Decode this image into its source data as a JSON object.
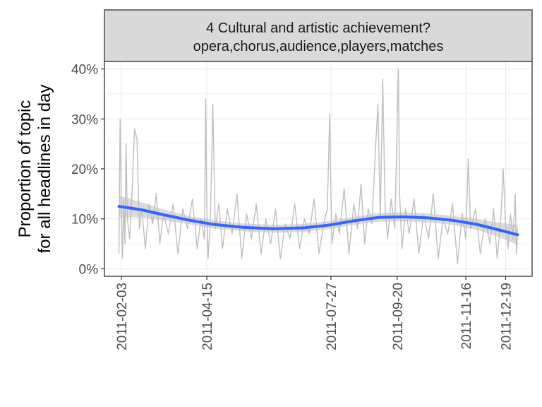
{
  "panel": {
    "strip_line1": "4 Cultural and artistic achievement?",
    "strip_line2": "opera,chorus,audience,players,matches"
  },
  "chart_data": {
    "type": "line",
    "title": "",
    "xlabel": "",
    "ylabel_line1": "Proportion of topic",
    "ylabel_line2": "for all headlines in day",
    "x_axis": "date",
    "xlim": [
      "2011-01-20",
      "2012-01-10"
    ],
    "ylim": [
      -0.015,
      0.415
    ],
    "y_ticks": [
      0,
      0.1,
      0.2,
      0.3,
      0.4
    ],
    "y_tick_labels": [
      "0%",
      "10%",
      "20%",
      "30%",
      "40%"
    ],
    "x_ticks": [
      "2011-02-03",
      "2011-04-15",
      "2011-07-27",
      "2011-09-20",
      "2011-11-16",
      "2011-12-19"
    ],
    "x_tick_labels": [
      "2011-02-03",
      "2011-04-15",
      "2011-07-27",
      "2011-09-20",
      "2011-11-16",
      "2011-12-19"
    ],
    "grid": true,
    "series": [
      {
        "kind": "raw",
        "color": "#bfbfbf",
        "points": [
          [
            "2011-02-01",
            0.03
          ],
          [
            "2011-02-02",
            0.3
          ],
          [
            "2011-02-03",
            0.12
          ],
          [
            "2011-02-04",
            0.02
          ],
          [
            "2011-02-05",
            0.14
          ],
          [
            "2011-02-06",
            0.05
          ],
          [
            "2011-02-07",
            0.25
          ],
          [
            "2011-02-08",
            0.1
          ],
          [
            "2011-02-10",
            0.06
          ],
          [
            "2011-02-12",
            0.16
          ],
          [
            "2011-02-14",
            0.28
          ],
          [
            "2011-02-16",
            0.26
          ],
          [
            "2011-02-18",
            0.08
          ],
          [
            "2011-02-20",
            0.12
          ],
          [
            "2011-02-23",
            0.04
          ],
          [
            "2011-02-26",
            0.13
          ],
          [
            "2011-03-01",
            0.09
          ],
          [
            "2011-03-04",
            0.15
          ],
          [
            "2011-03-07",
            0.05
          ],
          [
            "2011-03-10",
            0.11
          ],
          [
            "2011-03-14",
            0.07
          ],
          [
            "2011-03-18",
            0.13
          ],
          [
            "2011-03-22",
            0.03
          ],
          [
            "2011-03-26",
            0.12
          ],
          [
            "2011-03-30",
            0.08
          ],
          [
            "2011-04-03",
            0.14
          ],
          [
            "2011-04-07",
            0.04
          ],
          [
            "2011-04-10",
            0.1
          ],
          [
            "2011-04-13",
            0.06
          ],
          [
            "2011-04-14",
            0.34
          ],
          [
            "2011-04-15",
            0.12
          ],
          [
            "2011-04-16",
            0.02
          ],
          [
            "2011-04-18",
            0.1
          ],
          [
            "2011-04-20",
            0.33
          ],
          [
            "2011-04-22",
            0.08
          ],
          [
            "2011-04-25",
            0.13
          ],
          [
            "2011-04-28",
            0.04
          ],
          [
            "2011-05-02",
            0.12
          ],
          [
            "2011-05-06",
            0.07
          ],
          [
            "2011-05-10",
            0.15
          ],
          [
            "2011-05-14",
            0.02
          ],
          [
            "2011-05-18",
            0.11
          ],
          [
            "2011-05-22",
            0.06
          ],
          [
            "2011-05-26",
            0.13
          ],
          [
            "2011-05-30",
            0.03
          ],
          [
            "2011-06-03",
            0.1
          ],
          [
            "2011-06-07",
            0.05
          ],
          [
            "2011-06-11",
            0.12
          ],
          [
            "2011-06-15",
            0.02
          ],
          [
            "2011-06-19",
            0.09
          ],
          [
            "2011-06-23",
            0.06
          ],
          [
            "2011-06-27",
            0.13
          ],
          [
            "2011-07-01",
            0.04
          ],
          [
            "2011-07-05",
            0.1
          ],
          [
            "2011-07-09",
            0.07
          ],
          [
            "2011-07-13",
            0.14
          ],
          [
            "2011-07-17",
            0.03
          ],
          [
            "2011-07-21",
            0.09
          ],
          [
            "2011-07-24",
            0.12
          ],
          [
            "2011-07-26",
            0.31
          ],
          [
            "2011-07-27",
            0.15
          ],
          [
            "2011-07-28",
            0.05
          ],
          [
            "2011-07-31",
            0.11
          ],
          [
            "2011-08-03",
            0.07
          ],
          [
            "2011-08-07",
            0.16
          ],
          [
            "2011-08-11",
            0.03
          ],
          [
            "2011-08-15",
            0.13
          ],
          [
            "2011-08-18",
            0.08
          ],
          [
            "2011-08-21",
            0.17
          ],
          [
            "2011-08-24",
            0.05
          ],
          [
            "2011-08-27",
            0.12
          ],
          [
            "2011-08-30",
            0.09
          ],
          [
            "2011-09-02",
            0.24
          ],
          [
            "2011-09-04",
            0.33
          ],
          [
            "2011-09-06",
            0.1
          ],
          [
            "2011-09-08",
            0.38
          ],
          [
            "2011-09-10",
            0.12
          ],
          [
            "2011-09-12",
            0.06
          ],
          [
            "2011-09-15",
            0.14
          ],
          [
            "2011-09-18",
            0.08
          ],
          [
            "2011-09-21",
            0.4
          ],
          [
            "2011-09-22",
            0.15
          ],
          [
            "2011-09-24",
            0.04
          ],
          [
            "2011-09-27",
            0.12
          ],
          [
            "2011-09-30",
            0.07
          ],
          [
            "2011-10-04",
            0.14
          ],
          [
            "2011-10-08",
            0.03
          ],
          [
            "2011-10-12",
            0.11
          ],
          [
            "2011-10-16",
            0.06
          ],
          [
            "2011-10-20",
            0.15
          ],
          [
            "2011-10-24",
            0.02
          ],
          [
            "2011-10-28",
            0.1
          ],
          [
            "2011-11-01",
            0.07
          ],
          [
            "2011-11-05",
            0.13
          ],
          [
            "2011-11-09",
            0.01
          ],
          [
            "2011-11-13",
            0.11
          ],
          [
            "2011-11-16",
            0.06
          ],
          [
            "2011-11-18",
            0.22
          ],
          [
            "2011-11-20",
            0.08
          ],
          [
            "2011-11-24",
            0.12
          ],
          [
            "2011-11-28",
            0.03
          ],
          [
            "2011-12-02",
            0.1
          ],
          [
            "2011-12-06",
            0.05
          ],
          [
            "2011-12-09",
            0.12
          ],
          [
            "2011-12-12",
            0.02
          ],
          [
            "2011-12-15",
            0.1
          ],
          [
            "2011-12-17",
            0.2
          ],
          [
            "2011-12-19",
            0.09
          ],
          [
            "2011-12-21",
            0.04
          ],
          [
            "2011-12-23",
            0.11
          ],
          [
            "2011-12-25",
            0.06
          ],
          [
            "2011-12-27",
            0.15
          ],
          [
            "2011-12-28",
            0.03
          ],
          [
            "2011-12-29",
            0.08
          ]
        ]
      },
      {
        "kind": "smooth",
        "color": "#3366ff",
        "points": [
          [
            "2011-02-01",
            0.125
          ],
          [
            "2011-02-20",
            0.118
          ],
          [
            "2011-03-10",
            0.108
          ],
          [
            "2011-04-01",
            0.097
          ],
          [
            "2011-04-20",
            0.089
          ],
          [
            "2011-05-15",
            0.083
          ],
          [
            "2011-06-10",
            0.08
          ],
          [
            "2011-07-05",
            0.082
          ],
          [
            "2011-07-27",
            0.088
          ],
          [
            "2011-08-15",
            0.096
          ],
          [
            "2011-09-05",
            0.103
          ],
          [
            "2011-09-25",
            0.104
          ],
          [
            "2011-10-15",
            0.102
          ],
          [
            "2011-11-05",
            0.097
          ],
          [
            "2011-11-25",
            0.089
          ],
          [
            "2011-12-15",
            0.077
          ],
          [
            "2011-12-29",
            0.068
          ]
        ]
      },
      {
        "kind": "confidence_band",
        "color": "#999999",
        "lower": [
          0.103,
          0.103,
          0.097,
          0.089,
          0.081,
          0.075,
          0.072,
          0.074,
          0.08,
          0.088,
          0.094,
          0.095,
          0.093,
          0.088,
          0.078,
          0.062,
          0.048
        ],
        "upper": [
          0.147,
          0.133,
          0.119,
          0.105,
          0.097,
          0.091,
          0.088,
          0.09,
          0.096,
          0.104,
          0.112,
          0.113,
          0.111,
          0.106,
          0.1,
          0.092,
          0.088
        ]
      }
    ]
  }
}
